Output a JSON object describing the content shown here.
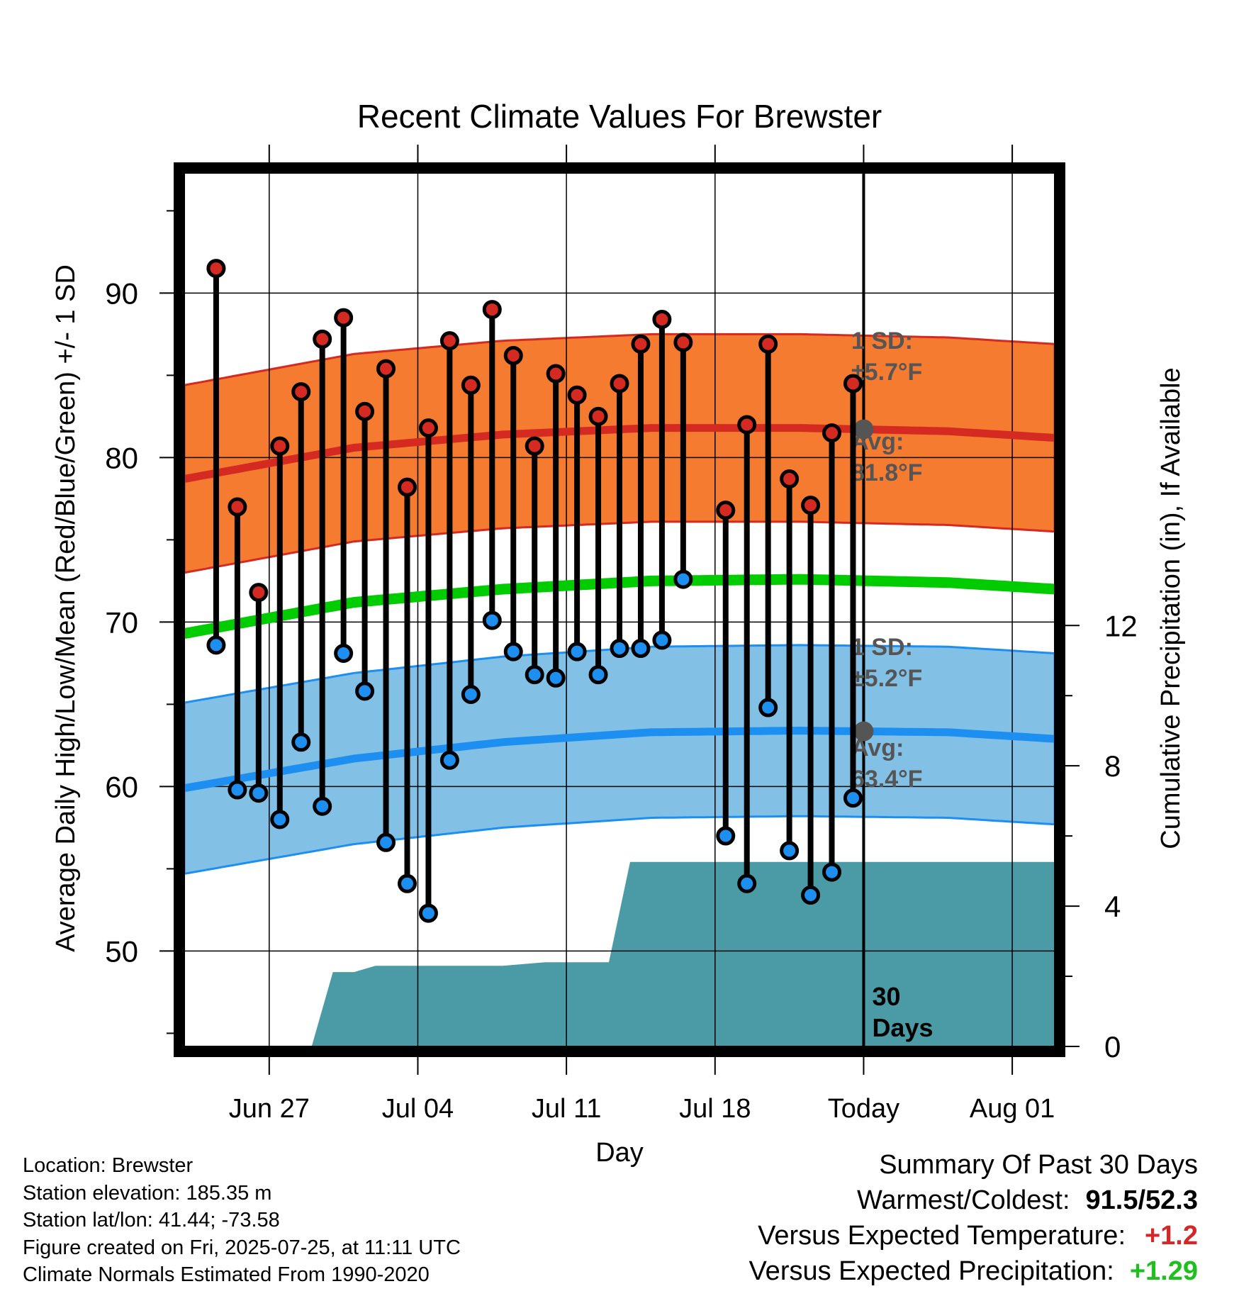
{
  "chart_data": {
    "type": "line",
    "title": "Recent Climate Values For Brewster",
    "xlabel": "Day",
    "ylabel": "Average Daily High/Low/Mean (Red/Blue/Green) +/- 1 SD",
    "y2label": "Cumulative Precipitation (in), If Available",
    "ylim": [
      44.2,
      97.3
    ],
    "y2lim": [
      0,
      24.9
    ],
    "xlim": [
      "2025-06-23",
      "2025-08-03"
    ],
    "x_ticks": [
      {
        "date": "2025-06-27",
        "label": "Jun 27"
      },
      {
        "date": "2025-07-04",
        "label": "Jul 04"
      },
      {
        "date": "2025-07-11",
        "label": "Jul 11"
      },
      {
        "date": "2025-07-18",
        "label": "Jul 18"
      },
      {
        "date": "2025-07-25",
        "label": "Today"
      },
      {
        "date": "2025-08-01",
        "label": "Aug 01"
      }
    ],
    "y_ticks": [
      50,
      60,
      70,
      80,
      90
    ],
    "y2_ticks": [
      0,
      4,
      8,
      12
    ],
    "grid": true,
    "today": "2025-07-25",
    "today_label": "30 Days",
    "normals_dates": [
      "2025-06-23",
      "2025-07-01",
      "2025-07-08",
      "2025-07-15",
      "2025-07-22",
      "2025-07-29",
      "2025-08-03"
    ],
    "normal_high": [
      78.7,
      80.6,
      81.4,
      81.8,
      81.8,
      81.6,
      81.2
    ],
    "normal_high_sd": 5.7,
    "normal_low": [
      59.9,
      61.7,
      62.7,
      63.3,
      63.4,
      63.3,
      62.9
    ],
    "normal_low_sd": 5.2,
    "normal_mean": [
      69.3,
      71.2,
      72.0,
      72.5,
      72.6,
      72.4,
      72.0
    ],
    "high_annotation": {
      "sd_label": "1 SD:",
      "sd_value": "±5.7°F",
      "avg_label": "Avg:",
      "avg_value": "81.8°F"
    },
    "low_annotation": {
      "sd_label": "1 SD:",
      "sd_value": "±5.2°F",
      "avg_label": "Avg:",
      "avg_value": "63.4°F"
    },
    "series": [
      {
        "name": "Daily High",
        "x": [
          "2025-06-24",
          "2025-06-25",
          "2025-06-26",
          "2025-06-27",
          "2025-06-28",
          "2025-06-29",
          "2025-06-30",
          "2025-07-01",
          "2025-07-02",
          "2025-07-03",
          "2025-07-04",
          "2025-07-05",
          "2025-07-06",
          "2025-07-07",
          "2025-07-08",
          "2025-07-09",
          "2025-07-10",
          "2025-07-11",
          "2025-07-12",
          "2025-07-13",
          "2025-07-14",
          "2025-07-15",
          "2025-07-16",
          "2025-07-17",
          "2025-07-18",
          "2025-07-19",
          "2025-07-20",
          "2025-07-21",
          "2025-07-22",
          "2025-07-23",
          "2025-07-24"
        ],
        "values": [
          91.5,
          77.0,
          71.8,
          80.7,
          84.0,
          87.2,
          88.5,
          82.8,
          85.4,
          78.2,
          81.8,
          87.1,
          84.4,
          89.0,
          86.2,
          80.7,
          85.1,
          83.8,
          82.5,
          84.5,
          86.9,
          88.4,
          87.0,
          null,
          76.8,
          82.0,
          86.9,
          78.7,
          77.1,
          81.5,
          84.5
        ]
      },
      {
        "name": "Daily Low",
        "x": [
          "2025-06-24",
          "2025-06-25",
          "2025-06-26",
          "2025-06-27",
          "2025-06-28",
          "2025-06-29",
          "2025-06-30",
          "2025-07-01",
          "2025-07-02",
          "2025-07-03",
          "2025-07-04",
          "2025-07-05",
          "2025-07-06",
          "2025-07-07",
          "2025-07-08",
          "2025-07-09",
          "2025-07-10",
          "2025-07-11",
          "2025-07-12",
          "2025-07-13",
          "2025-07-14",
          "2025-07-15",
          "2025-07-16",
          "2025-07-17",
          "2025-07-18",
          "2025-07-19",
          "2025-07-20",
          "2025-07-21",
          "2025-07-22",
          "2025-07-23",
          "2025-07-24"
        ],
        "values": [
          68.6,
          59.8,
          59.6,
          58.0,
          62.7,
          58.8,
          68.1,
          65.8,
          56.6,
          54.1,
          52.3,
          61.6,
          65.6,
          70.1,
          68.2,
          66.8,
          66.6,
          68.2,
          66.8,
          68.4,
          68.4,
          68.9,
          72.6,
          null,
          57.0,
          54.1,
          64.8,
          56.1,
          53.4,
          54.8,
          59.3
        ]
      },
      {
        "name": "Cumulative Precipitation",
        "x": [
          "2025-06-23",
          "2025-06-26",
          "2025-06-29",
          "2025-06-30",
          "2025-07-01",
          "2025-07-02",
          "2025-07-05",
          "2025-07-08",
          "2025-07-10",
          "2025-07-13",
          "2025-07-14",
          "2025-08-03"
        ],
        "values": [
          0,
          0,
          0,
          2.12,
          2.12,
          2.3,
          2.3,
          2.3,
          2.4,
          2.4,
          5.26,
          5.26
        ]
      }
    ]
  },
  "footer": {
    "location": "Location: Brewster",
    "elevation": "Station elevation: 185.35 m",
    "latlon": "Station lat/lon: 41.44; -73.58",
    "created": "Figure created on Fri, 2025-07-25, at 11:11 UTC",
    "normals": "Climate Normals Estimated From 1990-2020"
  },
  "summary": {
    "title": "Summary Of Past 30 Days",
    "warm_label": "Warmest/Coldest:",
    "warm_value": "91.5/52.3",
    "temp_label": "Versus Expected Temperature:",
    "temp_value": "+1.2",
    "precip_label": "Versus Expected Precipitation:",
    "precip_value": "+1.29"
  },
  "colors": {
    "high_band": "#f47b30",
    "high_line": "#d42a22",
    "low_band": "#82c0e6",
    "low_line": "#1d8ff0",
    "mean_line": "#00cc00",
    "precip": "#4a9ba5",
    "high_dot": "#d42a22",
    "low_dot": "#1d8ff0",
    "annotation": "#555555"
  }
}
